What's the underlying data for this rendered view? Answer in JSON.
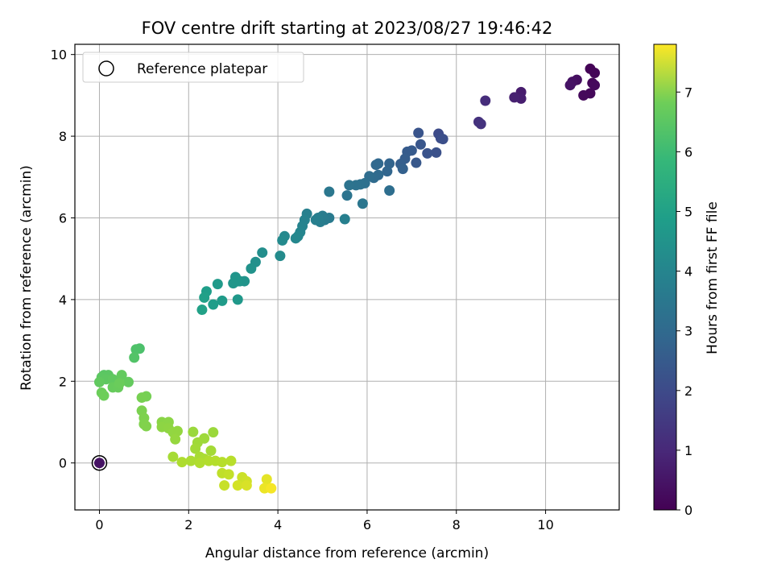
{
  "chart_data": {
    "type": "scatter",
    "title": "FOV centre drift starting at 2023/08/27 19:46:42",
    "xlabel": "Angular distance from reference (arcmin)",
    "ylabel": "Rotation from reference (arcmin)",
    "xlim": [
      -0.55,
      11.65
    ],
    "ylim": [
      -1.15,
      10.25
    ],
    "xticks": [
      0,
      2,
      4,
      6,
      8,
      10
    ],
    "yticks": [
      0,
      2,
      4,
      6,
      8,
      10
    ],
    "grid": true,
    "legend": {
      "position": "top-left",
      "entries": [
        "Reference platepar"
      ]
    },
    "colorbar": {
      "label": "Hours from first FF file",
      "range": [
        0,
        7.8
      ],
      "ticks": [
        0,
        1,
        2,
        3,
        4,
        5,
        6,
        7
      ],
      "colormap": "viridis"
    },
    "reference_point": {
      "x": 0,
      "y": 0,
      "label": "Reference platepar"
    },
    "points": [
      {
        "x": 11.0,
        "y": 9.65,
        "h": 0.05
      },
      {
        "x": 11.1,
        "y": 9.55,
        "h": 0.08
      },
      {
        "x": 11.05,
        "y": 9.3,
        "h": 0.12
      },
      {
        "x": 11.0,
        "y": 9.05,
        "h": 0.15
      },
      {
        "x": 10.85,
        "y": 9.0,
        "h": 0.18
      },
      {
        "x": 11.1,
        "y": 9.25,
        "h": 0.2
      },
      {
        "x": 10.7,
        "y": 9.38,
        "h": 0.3
      },
      {
        "x": 10.6,
        "y": 9.33,
        "h": 0.35
      },
      {
        "x": 10.55,
        "y": 9.25,
        "h": 0.4
      },
      {
        "x": 9.45,
        "y": 9.08,
        "h": 0.6
      },
      {
        "x": 9.45,
        "y": 8.92,
        "h": 0.65
      },
      {
        "x": 9.3,
        "y": 8.95,
        "h": 0.7
      },
      {
        "x": 8.65,
        "y": 8.87,
        "h": 1.0
      },
      {
        "x": 8.5,
        "y": 8.35,
        "h": 1.1
      },
      {
        "x": 8.55,
        "y": 8.3,
        "h": 1.15
      },
      {
        "x": 7.6,
        "y": 8.06,
        "h": 1.8
      },
      {
        "x": 7.65,
        "y": 7.95,
        "h": 1.85
      },
      {
        "x": 7.7,
        "y": 7.93,
        "h": 1.9
      },
      {
        "x": 7.55,
        "y": 7.6,
        "h": 1.95
      },
      {
        "x": 7.35,
        "y": 7.58,
        "h": 2.0
      },
      {
        "x": 7.15,
        "y": 8.08,
        "h": 2.05
      },
      {
        "x": 7.2,
        "y": 7.8,
        "h": 2.1
      },
      {
        "x": 7.1,
        "y": 7.35,
        "h": 2.15
      },
      {
        "x": 7.0,
        "y": 7.65,
        "h": 2.2
      },
      {
        "x": 6.9,
        "y": 7.62,
        "h": 2.25
      },
      {
        "x": 6.85,
        "y": 7.45,
        "h": 2.3
      },
      {
        "x": 6.75,
        "y": 7.32,
        "h": 2.35
      },
      {
        "x": 6.8,
        "y": 7.2,
        "h": 2.4
      },
      {
        "x": 6.5,
        "y": 7.33,
        "h": 2.5
      },
      {
        "x": 6.45,
        "y": 7.14,
        "h": 2.55
      },
      {
        "x": 6.25,
        "y": 7.33,
        "h": 2.6
      },
      {
        "x": 6.2,
        "y": 7.3,
        "h": 2.62
      },
      {
        "x": 6.25,
        "y": 7.05,
        "h": 2.65
      },
      {
        "x": 6.15,
        "y": 6.98,
        "h": 2.7
      },
      {
        "x": 6.05,
        "y": 7.02,
        "h": 2.75
      },
      {
        "x": 6.5,
        "y": 6.67,
        "h": 2.8
      },
      {
        "x": 5.95,
        "y": 6.85,
        "h": 2.85
      },
      {
        "x": 5.85,
        "y": 6.82,
        "h": 2.9
      },
      {
        "x": 5.75,
        "y": 6.8,
        "h": 2.92
      },
      {
        "x": 5.6,
        "y": 6.8,
        "h": 2.95
      },
      {
        "x": 5.55,
        "y": 6.55,
        "h": 3.0
      },
      {
        "x": 5.9,
        "y": 6.35,
        "h": 3.05
      },
      {
        "x": 5.15,
        "y": 6.64,
        "h": 3.1
      },
      {
        "x": 5.15,
        "y": 6.0,
        "h": 3.2
      },
      {
        "x": 5.05,
        "y": 5.95,
        "h": 3.22
      },
      {
        "x": 5.0,
        "y": 6.05,
        "h": 3.25
      },
      {
        "x": 4.95,
        "y": 5.9,
        "h": 3.3
      },
      {
        "x": 4.9,
        "y": 6.0,
        "h": 3.32
      },
      {
        "x": 4.85,
        "y": 5.95,
        "h": 3.35
      },
      {
        "x": 5.5,
        "y": 5.97,
        "h": 3.38
      },
      {
        "x": 4.65,
        "y": 6.1,
        "h": 3.4
      },
      {
        "x": 4.6,
        "y": 5.95,
        "h": 3.45
      },
      {
        "x": 4.55,
        "y": 5.8,
        "h": 3.5
      },
      {
        "x": 4.5,
        "y": 5.65,
        "h": 3.55
      },
      {
        "x": 4.45,
        "y": 5.55,
        "h": 3.6
      },
      {
        "x": 4.4,
        "y": 5.5,
        "h": 3.62
      },
      {
        "x": 4.15,
        "y": 5.55,
        "h": 3.65
      },
      {
        "x": 4.1,
        "y": 5.45,
        "h": 3.7
      },
      {
        "x": 4.05,
        "y": 5.07,
        "h": 3.75
      },
      {
        "x": 3.65,
        "y": 5.15,
        "h": 3.85
      },
      {
        "x": 3.5,
        "y": 4.92,
        "h": 3.9
      },
      {
        "x": 3.4,
        "y": 4.76,
        "h": 3.95
      },
      {
        "x": 3.15,
        "y": 4.45,
        "h": 4.0
      },
      {
        "x": 3.25,
        "y": 4.45,
        "h": 4.02
      },
      {
        "x": 3.05,
        "y": 4.55,
        "h": 4.05
      },
      {
        "x": 3.1,
        "y": 4.45,
        "h": 4.08
      },
      {
        "x": 3.0,
        "y": 4.4,
        "h": 4.1
      },
      {
        "x": 3.1,
        "y": 4.0,
        "h": 4.15
      },
      {
        "x": 2.65,
        "y": 4.38,
        "h": 4.2
      },
      {
        "x": 2.75,
        "y": 3.97,
        "h": 4.25
      },
      {
        "x": 2.55,
        "y": 3.88,
        "h": 4.3
      },
      {
        "x": 2.4,
        "y": 4.2,
        "h": 4.35
      },
      {
        "x": 2.35,
        "y": 4.05,
        "h": 4.4
      },
      {
        "x": 2.3,
        "y": 3.75,
        "h": 4.45
      },
      {
        "x": 0.9,
        "y": 2.8,
        "h": 5.55
      },
      {
        "x": 0.82,
        "y": 2.78,
        "h": 5.6
      },
      {
        "x": 0.78,
        "y": 2.58,
        "h": 5.65
      },
      {
        "x": 0.1,
        "y": 2.15,
        "h": 5.75
      },
      {
        "x": 0.2,
        "y": 2.15,
        "h": 5.78
      },
      {
        "x": 0.05,
        "y": 2.1,
        "h": 5.8
      },
      {
        "x": 0.15,
        "y": 2.05,
        "h": 5.82
      },
      {
        "x": 0.3,
        "y": 2.05,
        "h": 5.85
      },
      {
        "x": 0.0,
        "y": 1.98,
        "h": 5.87
      },
      {
        "x": 0.5,
        "y": 2.15,
        "h": 5.9
      },
      {
        "x": 0.65,
        "y": 1.98,
        "h": 5.92
      },
      {
        "x": 0.3,
        "y": 1.85,
        "h": 5.95
      },
      {
        "x": 0.42,
        "y": 1.85,
        "h": 5.97
      },
      {
        "x": 0.45,
        "y": 1.95,
        "h": 6.0
      },
      {
        "x": 0.05,
        "y": 1.72,
        "h": 6.02
      },
      {
        "x": 0.1,
        "y": 1.65,
        "h": 6.05
      },
      {
        "x": 1.05,
        "y": 1.63,
        "h": 6.15
      },
      {
        "x": 0.95,
        "y": 1.6,
        "h": 6.18
      },
      {
        "x": 0.95,
        "y": 1.28,
        "h": 6.22
      },
      {
        "x": 1.0,
        "y": 1.1,
        "h": 6.25
      },
      {
        "x": 1.0,
        "y": 0.95,
        "h": 6.28
      },
      {
        "x": 1.05,
        "y": 0.9,
        "h": 6.3
      },
      {
        "x": 1.4,
        "y": 1.0,
        "h": 6.4
      },
      {
        "x": 1.55,
        "y": 1.0,
        "h": 6.42
      },
      {
        "x": 1.4,
        "y": 0.88,
        "h": 6.45
      },
      {
        "x": 1.55,
        "y": 0.85,
        "h": 6.47
      },
      {
        "x": 1.65,
        "y": 0.75,
        "h": 6.5
      },
      {
        "x": 1.75,
        "y": 0.78,
        "h": 6.52
      },
      {
        "x": 1.7,
        "y": 0.58,
        "h": 6.55
      },
      {
        "x": 2.1,
        "y": 0.76,
        "h": 6.6
      },
      {
        "x": 2.55,
        "y": 0.75,
        "h": 6.62
      },
      {
        "x": 2.35,
        "y": 0.6,
        "h": 6.65
      },
      {
        "x": 2.2,
        "y": 0.5,
        "h": 6.67
      },
      {
        "x": 2.15,
        "y": 0.35,
        "h": 6.7
      },
      {
        "x": 2.5,
        "y": 0.3,
        "h": 6.72
      },
      {
        "x": 1.65,
        "y": 0.15,
        "h": 6.75
      },
      {
        "x": 2.25,
        "y": 0.15,
        "h": 6.77
      },
      {
        "x": 2.35,
        "y": 0.1,
        "h": 6.8
      },
      {
        "x": 2.05,
        "y": 0.05,
        "h": 6.82
      },
      {
        "x": 1.85,
        "y": 0.02,
        "h": 6.85
      },
      {
        "x": 2.25,
        "y": 0.0,
        "h": 6.87
      },
      {
        "x": 2.45,
        "y": 0.05,
        "h": 6.9
      },
      {
        "x": 2.6,
        "y": 0.05,
        "h": 6.92
      },
      {
        "x": 2.75,
        "y": 0.02,
        "h": 6.95
      },
      {
        "x": 2.95,
        "y": 0.05,
        "h": 6.97
      },
      {
        "x": 2.75,
        "y": -0.25,
        "h": 7.05
      },
      {
        "x": 2.9,
        "y": -0.28,
        "h": 7.1
      },
      {
        "x": 2.8,
        "y": -0.55,
        "h": 7.15
      },
      {
        "x": 3.2,
        "y": -0.35,
        "h": 7.2
      },
      {
        "x": 3.3,
        "y": -0.45,
        "h": 7.25
      },
      {
        "x": 3.1,
        "y": -0.55,
        "h": 7.3
      },
      {
        "x": 3.3,
        "y": -0.55,
        "h": 7.35
      },
      {
        "x": 3.75,
        "y": -0.4,
        "h": 7.5
      },
      {
        "x": 3.7,
        "y": -0.62,
        "h": 7.6
      },
      {
        "x": 3.85,
        "y": -0.62,
        "h": 7.7
      }
    ]
  }
}
